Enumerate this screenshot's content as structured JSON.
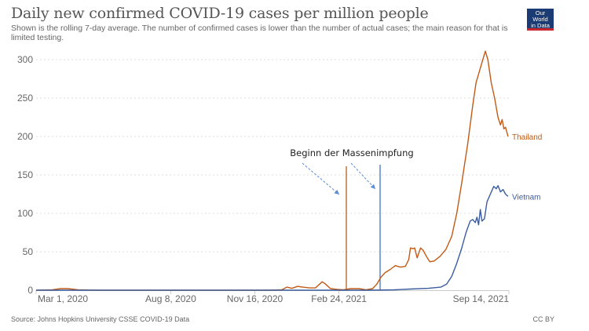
{
  "header": {
    "title": "Daily new confirmed COVID-19 cases per million people",
    "subtitle": "Shown is the rolling 7-day average. The number of confirmed cases is lower than the number of actual cases; the main reason for that is limited testing.",
    "logo_line1": "Our World",
    "logo_line2": "in Data"
  },
  "footer": {
    "source": "Source: Johns Hopkins University CSSE COVID-19 Data",
    "license": "CC BY"
  },
  "colors": {
    "thailand": "#c15a15",
    "vietnam": "#3a5c9e",
    "annotation_line_1": "#b0601c",
    "annotation_line_2": "#4472c4",
    "annotation_arrow": "#5b8ed6",
    "grid": "#dddddd",
    "axis": "#cccccc"
  },
  "chart_data": {
    "type": "line",
    "title": "Daily new confirmed COVID-19 cases per million people",
    "xlabel": "",
    "ylabel": "",
    "ylim": [
      0,
      310
    ],
    "yticks": [
      0,
      50,
      100,
      150,
      200,
      250,
      300
    ],
    "xlim": [
      "2020-03-01",
      "2021-09-24"
    ],
    "xticks": [
      {
        "date": "2020-03-01",
        "label": "Mar 1, 2020"
      },
      {
        "date": "2020-08-08",
        "label": "Aug 8, 2020"
      },
      {
        "date": "2020-11-16",
        "label": "Nov 16, 2020"
      },
      {
        "date": "2021-02-24",
        "label": "Feb 24, 2021"
      },
      {
        "date": "2021-09-14",
        "label": "Sep 14, 2021"
      }
    ],
    "grid": "horizontal-dotted",
    "series": [
      {
        "name": "Thailand",
        "points": [
          [
            "2020-03-01",
            0
          ],
          [
            "2020-03-20",
            0.5
          ],
          [
            "2020-03-30",
            2
          ],
          [
            "2020-04-08",
            2
          ],
          [
            "2020-04-20",
            0.5
          ],
          [
            "2020-05-15",
            0
          ],
          [
            "2020-12-01",
            0
          ],
          [
            "2020-12-18",
            0.5
          ],
          [
            "2020-12-24",
            4
          ],
          [
            "2020-12-30",
            2.5
          ],
          [
            "2021-01-06",
            5
          ],
          [
            "2021-01-12",
            4
          ],
          [
            "2021-01-20",
            3
          ],
          [
            "2021-01-27",
            3
          ],
          [
            "2021-02-01",
            8
          ],
          [
            "2021-02-04",
            11
          ],
          [
            "2021-02-08",
            8
          ],
          [
            "2021-02-14",
            2
          ],
          [
            "2021-02-22",
            1
          ],
          [
            "2021-03-01",
            0.5
          ],
          [
            "2021-03-10",
            2
          ],
          [
            "2021-03-20",
            2
          ],
          [
            "2021-03-28",
            0.5
          ],
          [
            "2021-04-05",
            2
          ],
          [
            "2021-04-10",
            8
          ],
          [
            "2021-04-15",
            17
          ],
          [
            "2021-04-20",
            23
          ],
          [
            "2021-04-26",
            27
          ],
          [
            "2021-05-02",
            32
          ],
          [
            "2021-05-08",
            30
          ],
          [
            "2021-05-14",
            31
          ],
          [
            "2021-05-18",
            40
          ],
          [
            "2021-05-20",
            55
          ],
          [
            "2021-05-23",
            54
          ],
          [
            "2021-05-25",
            55
          ],
          [
            "2021-05-28",
            42
          ],
          [
            "2021-06-01",
            55
          ],
          [
            "2021-06-04",
            52
          ],
          [
            "2021-06-08",
            44
          ],
          [
            "2021-06-12",
            37
          ],
          [
            "2021-06-17",
            38
          ],
          [
            "2021-06-24",
            44
          ],
          [
            "2021-07-01",
            53
          ],
          [
            "2021-07-08",
            70
          ],
          [
            "2021-07-14",
            100
          ],
          [
            "2021-07-20",
            140
          ],
          [
            "2021-07-27",
            190
          ],
          [
            "2021-08-02",
            240
          ],
          [
            "2021-08-06",
            270
          ],
          [
            "2021-08-10",
            285
          ],
          [
            "2021-08-14",
            300
          ],
          [
            "2021-08-17",
            311
          ],
          [
            "2021-08-20",
            300
          ],
          [
            "2021-08-24",
            270
          ],
          [
            "2021-08-28",
            250
          ],
          [
            "2021-09-01",
            225
          ],
          [
            "2021-09-04",
            215
          ],
          [
            "2021-09-06",
            222
          ],
          [
            "2021-09-08",
            210
          ],
          [
            "2021-09-10",
            212
          ],
          [
            "2021-09-13",
            200
          ]
        ]
      },
      {
        "name": "Vietnam",
        "points": [
          [
            "2020-03-01",
            0
          ],
          [
            "2021-04-01",
            0
          ],
          [
            "2021-05-01",
            0.5
          ],
          [
            "2021-05-20",
            1.5
          ],
          [
            "2021-06-10",
            2.5
          ],
          [
            "2021-06-25",
            4
          ],
          [
            "2021-07-02",
            8
          ],
          [
            "2021-07-08",
            18
          ],
          [
            "2021-07-14",
            35
          ],
          [
            "2021-07-20",
            55
          ],
          [
            "2021-07-25",
            75
          ],
          [
            "2021-07-30",
            90
          ],
          [
            "2021-08-02",
            92
          ],
          [
            "2021-08-05",
            88
          ],
          [
            "2021-08-07",
            95
          ],
          [
            "2021-08-09",
            85
          ],
          [
            "2021-08-11",
            105
          ],
          [
            "2021-08-13",
            90
          ],
          [
            "2021-08-16",
            93
          ],
          [
            "2021-08-19",
            115
          ],
          [
            "2021-08-23",
            125
          ],
          [
            "2021-08-27",
            135
          ],
          [
            "2021-08-30",
            132
          ],
          [
            "2021-09-01",
            136
          ],
          [
            "2021-09-04",
            128
          ],
          [
            "2021-09-07",
            131
          ],
          [
            "2021-09-10",
            125
          ],
          [
            "2021-09-13",
            122
          ]
        ]
      }
    ],
    "annotations": [
      {
        "text": "Beginn der Massenimpfung",
        "type": "text-with-arrows"
      },
      {
        "type": "vertical-line",
        "date": "2021-02-28",
        "series_color": "thailand"
      },
      {
        "type": "vertical-line",
        "date": "2021-04-12",
        "series_color": "vietnam"
      }
    ]
  }
}
